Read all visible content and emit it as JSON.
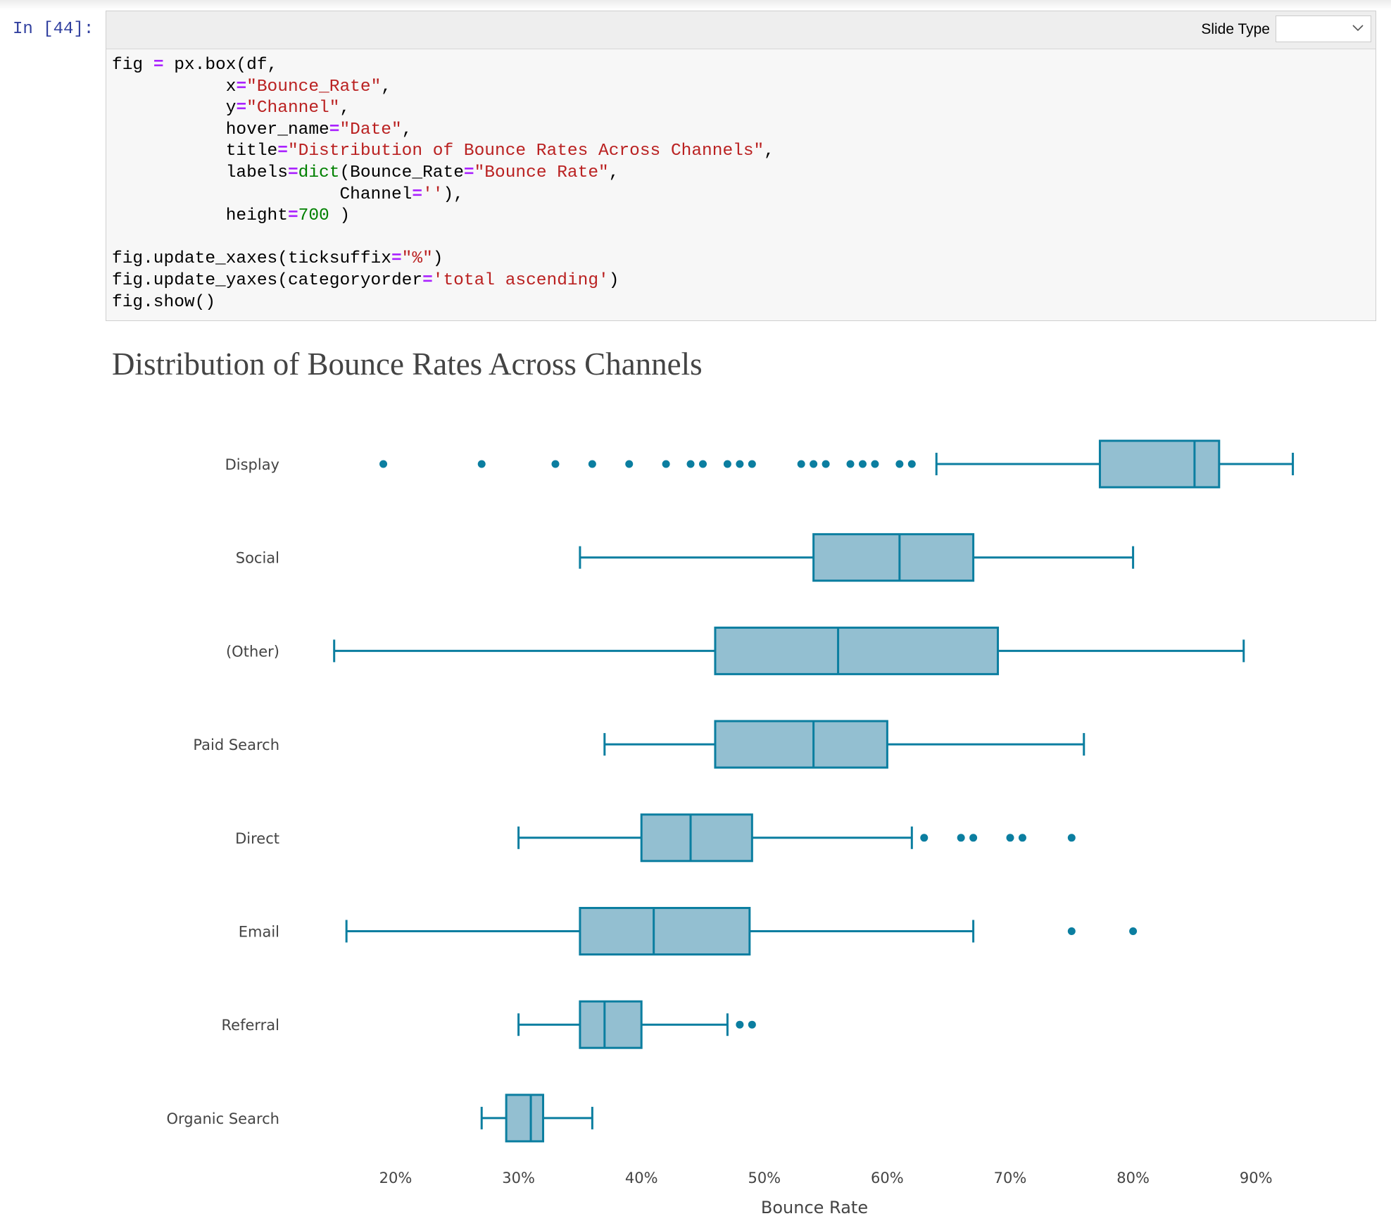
{
  "cell": {
    "prompt": "In [44]:",
    "slide_type_label": "Slide Type",
    "slide_type_value": "",
    "code_lines": [
      [
        [
          "",
          "fig "
        ],
        [
          "op",
          "="
        ],
        [
          "",
          " px.box(df,"
        ]
      ],
      [
        [
          "",
          "           x"
        ],
        [
          "op",
          "="
        ],
        [
          "str",
          "\"Bounce_Rate\""
        ],
        [
          "",
          ","
        ]
      ],
      [
        [
          "",
          "           y"
        ],
        [
          "op",
          "="
        ],
        [
          "str",
          "\"Channel\""
        ],
        [
          "",
          ","
        ]
      ],
      [
        [
          "",
          "           hover_name"
        ],
        [
          "op",
          "="
        ],
        [
          "str",
          "\"Date\""
        ],
        [
          "",
          ","
        ]
      ],
      [
        [
          "",
          "           title"
        ],
        [
          "op",
          "="
        ],
        [
          "str",
          "\"Distribution of Bounce Rates Across Channels\""
        ],
        [
          "",
          ","
        ]
      ],
      [
        [
          "",
          "           labels"
        ],
        [
          "op",
          "="
        ],
        [
          "bi",
          "dict"
        ],
        [
          "",
          "(Bounce_Rate"
        ],
        [
          "op",
          "="
        ],
        [
          "str",
          "\"Bounce Rate\""
        ],
        [
          "",
          ","
        ]
      ],
      [
        [
          "",
          "                      Channel"
        ],
        [
          "op",
          "="
        ],
        [
          "str",
          "''"
        ],
        [
          "",
          "),"
        ]
      ],
      [
        [
          "",
          "           height"
        ],
        [
          "op",
          "="
        ],
        [
          "num",
          "700"
        ],
        [
          "",
          " )"
        ]
      ],
      [
        [
          "",
          ""
        ]
      ],
      [
        [
          "",
          "fig.update_xaxes(ticksuffix"
        ],
        [
          "op",
          "="
        ],
        [
          "str",
          "\"%\""
        ],
        [
          "",
          ")"
        ]
      ],
      [
        [
          "",
          "fig.update_yaxes(categoryorder"
        ],
        [
          "op",
          "="
        ],
        [
          "str",
          "'total ascending'"
        ],
        [
          "",
          ")"
        ]
      ],
      [
        [
          "",
          "fig.show()"
        ]
      ]
    ]
  },
  "chart_data": {
    "type": "box",
    "title": "Distribution of Bounce Rates Across Channels",
    "xlabel": "Bounce Rate",
    "ylabel": "",
    "xlim": [
      14,
      94
    ],
    "tick_suffix": "%",
    "xticks": [
      20,
      30,
      40,
      50,
      60,
      70,
      80,
      90
    ],
    "color": "#0b7ea0",
    "fill": "#93bfd1",
    "series": [
      {
        "name": "Display",
        "min": 64,
        "q1": 77.3,
        "median": 85,
        "q3": 87,
        "max": 93,
        "outliers": [
          19,
          27,
          33,
          36,
          39,
          42,
          44,
          45,
          47,
          48,
          49,
          53,
          54,
          55,
          57,
          58,
          59,
          61,
          62
        ]
      },
      {
        "name": "Social",
        "min": 35,
        "q1": 54,
        "median": 61,
        "q3": 67,
        "max": 80,
        "outliers": []
      },
      {
        "name": "(Other)",
        "min": 15,
        "q1": 46,
        "median": 56,
        "q3": 69,
        "max": 89,
        "outliers": []
      },
      {
        "name": "Paid Search",
        "min": 37,
        "q1": 46,
        "median": 54,
        "q3": 60,
        "max": 76,
        "outliers": []
      },
      {
        "name": "Direct",
        "min": 30,
        "q1": 40,
        "median": 44,
        "q3": 49,
        "max": 62,
        "outliers": [
          63,
          66,
          67,
          70,
          71,
          75
        ]
      },
      {
        "name": "Email",
        "min": 16,
        "q1": 35,
        "median": 41,
        "q3": 48.8,
        "max": 67,
        "outliers": [
          75,
          80
        ]
      },
      {
        "name": "Referral",
        "min": 30,
        "q1": 35,
        "median": 37,
        "q3": 40,
        "max": 47,
        "outliers": [
          48,
          49
        ]
      },
      {
        "name": "Organic Search",
        "min": 27,
        "q1": 29,
        "median": 31,
        "q3": 32,
        "max": 36,
        "outliers": []
      }
    ]
  }
}
